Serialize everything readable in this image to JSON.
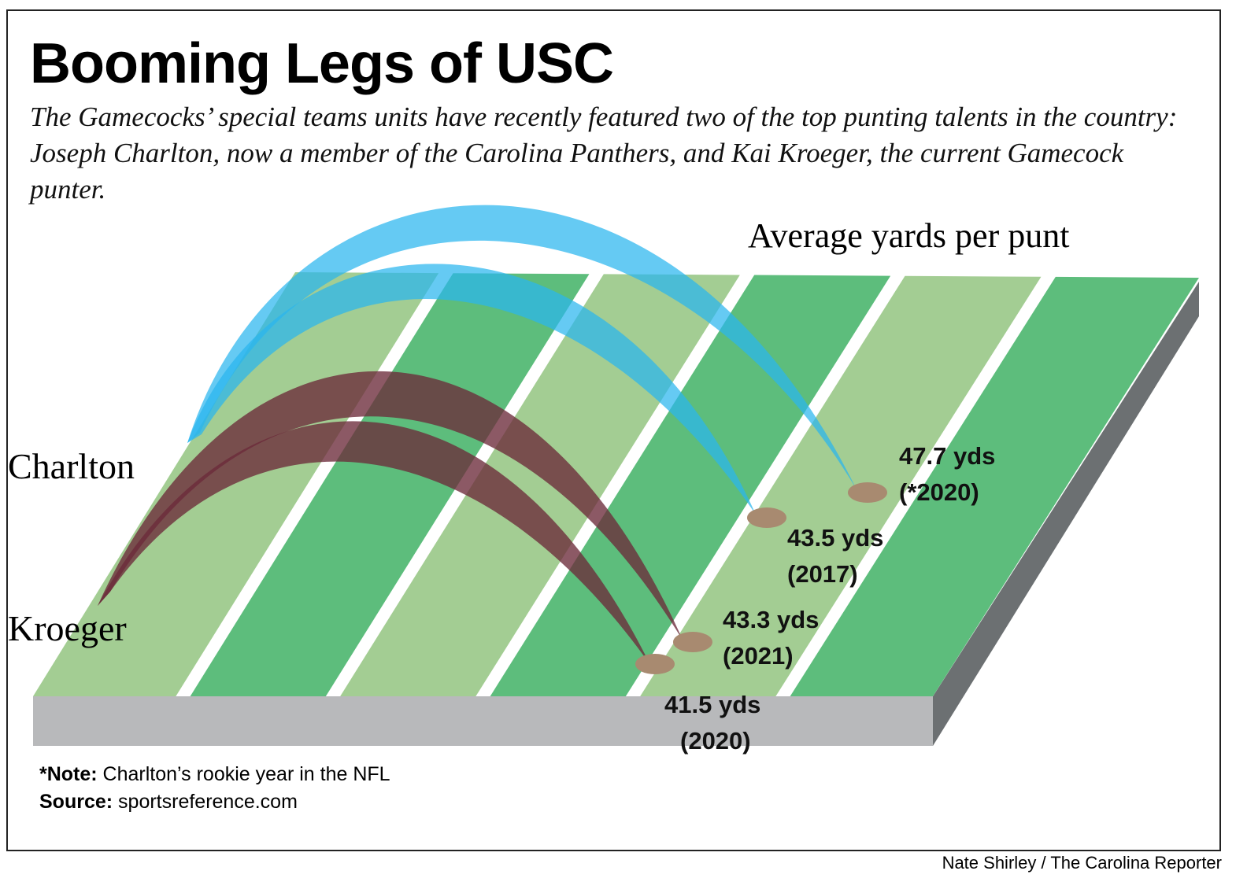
{
  "header": {
    "title": "Booming Legs of USC",
    "subtitle": "The Gamecocks’ special teams units have recently featured two of the top punting talents in the country: Joseph Charlton, now a member of the Carolina Panthers, and Kai Kroeger, the current Gamecock punter."
  },
  "chart_data": {
    "type": "other",
    "metric_label": "Average yards per punt",
    "series": [
      {
        "name": "Charlton",
        "color": "#29b6ef",
        "points": [
          {
            "season": "2017",
            "label": "(2017)",
            "yards": 43.5,
            "value_label": "43.5 yds"
          },
          {
            "season": "2020",
            "label": "(*2020)",
            "yards": 47.7,
            "value_label": "47.7 yds"
          }
        ]
      },
      {
        "name": "Kroeger",
        "color": "#6b2a3a",
        "points": [
          {
            "season": "2020",
            "label": "(2020)",
            "yards": 41.5,
            "value_label": "41.5 yds"
          },
          {
            "season": "2021",
            "label": "(2021)",
            "yards": 43.3,
            "value_label": "43.3 yds"
          }
        ]
      }
    ]
  },
  "footer": {
    "note_label": "*Note:",
    "note_text": " Charlton’s rookie year in the NFL",
    "source_label": "Source:",
    "source_text": " sportsreference.com",
    "credit": "Nate Shirley / The Carolina Reporter"
  },
  "colors": {
    "field_light": "#a3cd93",
    "field_dark": "#5dbd7c",
    "field_front": "#b8b9bb",
    "field_side": "#6c7072",
    "landing_spot": "#a88a70"
  }
}
